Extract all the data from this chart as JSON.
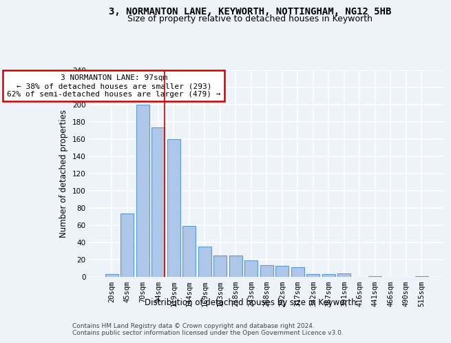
{
  "title1": "3, NORMANTON LANE, KEYWORTH, NOTTINGHAM, NG12 5HB",
  "title2": "Size of property relative to detached houses in Keyworth",
  "xlabel": "Distribution of detached houses by size in Keyworth",
  "ylabel": "Number of detached properties",
  "categories": [
    "20sqm",
    "45sqm",
    "70sqm",
    "94sqm",
    "119sqm",
    "144sqm",
    "169sqm",
    "193sqm",
    "218sqm",
    "243sqm",
    "268sqm",
    "292sqm",
    "317sqm",
    "342sqm",
    "367sqm",
    "391sqm",
    "416sqm",
    "441sqm",
    "466sqm",
    "490sqm",
    "515sqm"
  ],
  "values": [
    3,
    74,
    200,
    174,
    160,
    59,
    35,
    25,
    25,
    19,
    14,
    13,
    11,
    3,
    3,
    4,
    0,
    1,
    0,
    0,
    1
  ],
  "bar_color": "#aec6e8",
  "bar_edge_color": "#5b9bd5",
  "highlight_index": 3,
  "vline_color": "#cc0000",
  "annotation_text": "3 NORMANTON LANE: 97sqm\n← 38% of detached houses are smaller (293)\n62% of semi-detached houses are larger (479) →",
  "annotation_box_color": "#ffffff",
  "annotation_box_edge_color": "#cc0000",
  "footer1": "Contains HM Land Registry data © Crown copyright and database right 2024.",
  "footer2": "Contains public sector information licensed under the Open Government Licence v3.0.",
  "ylim": [
    0,
    240
  ],
  "yticks": [
    0,
    20,
    40,
    60,
    80,
    100,
    120,
    140,
    160,
    180,
    200,
    220,
    240
  ],
  "background_color": "#eef2f9",
  "grid_color": "#ffffff",
  "title1_fontsize": 10,
  "title2_fontsize": 9,
  "axis_label_fontsize": 8.5,
  "tick_fontsize": 7.5,
  "footer_fontsize": 6.5
}
